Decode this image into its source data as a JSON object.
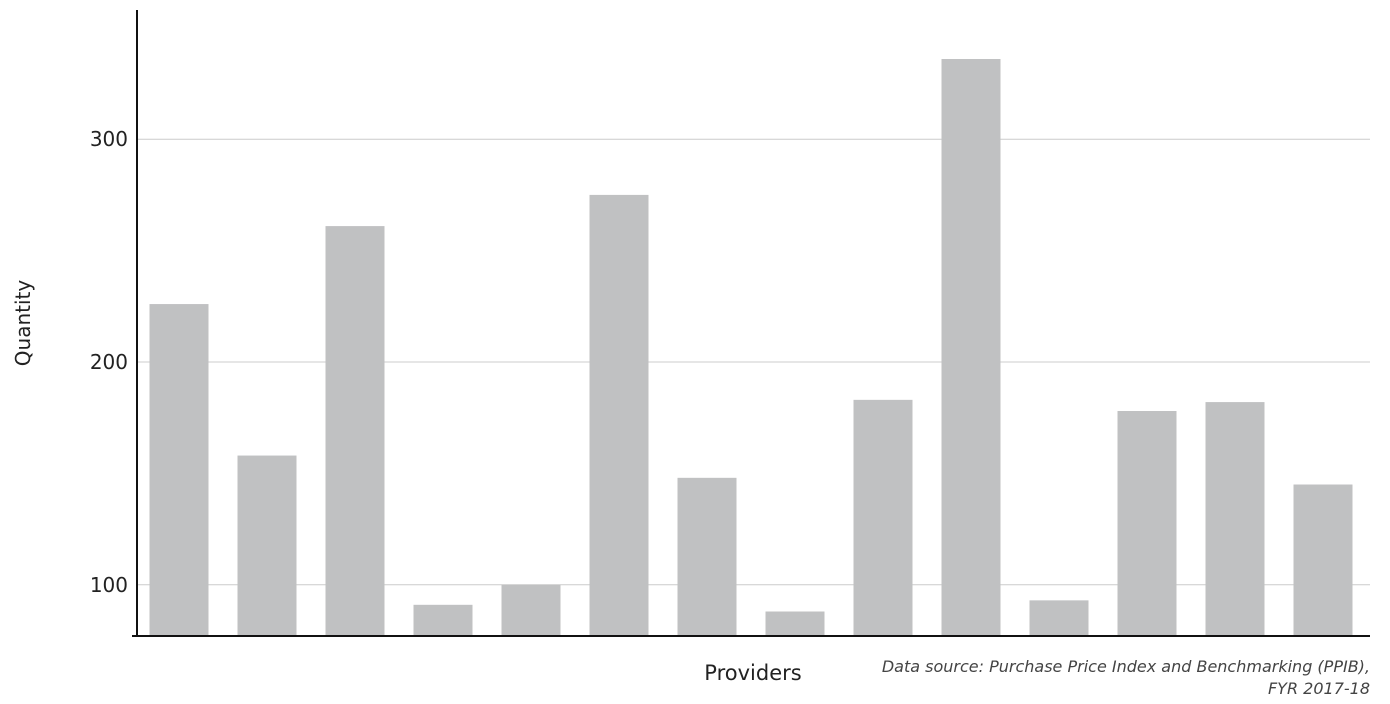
{
  "chart_data": {
    "type": "bar",
    "categories": [
      "",
      "",
      "",
      "",
      "",
      "",
      "",
      "",
      "",
      "",
      "",
      "",
      "",
      ""
    ],
    "values": [
      226,
      158,
      261,
      91,
      100,
      275,
      148,
      88,
      183,
      336,
      93,
      178,
      182,
      145
    ],
    "xlabel": "Providers",
    "ylabel": "Quantity",
    "yticks": [
      100,
      200,
      300
    ],
    "ylim": [
      77,
      358
    ],
    "grid": true,
    "bar_color": "#c0c1c2",
    "grid_color": "#cccccc",
    "axis_color": "#111111"
  },
  "source_note": "Data source: Purchase Price Index and Benchmarking (PPIB), FYR 2017-18"
}
